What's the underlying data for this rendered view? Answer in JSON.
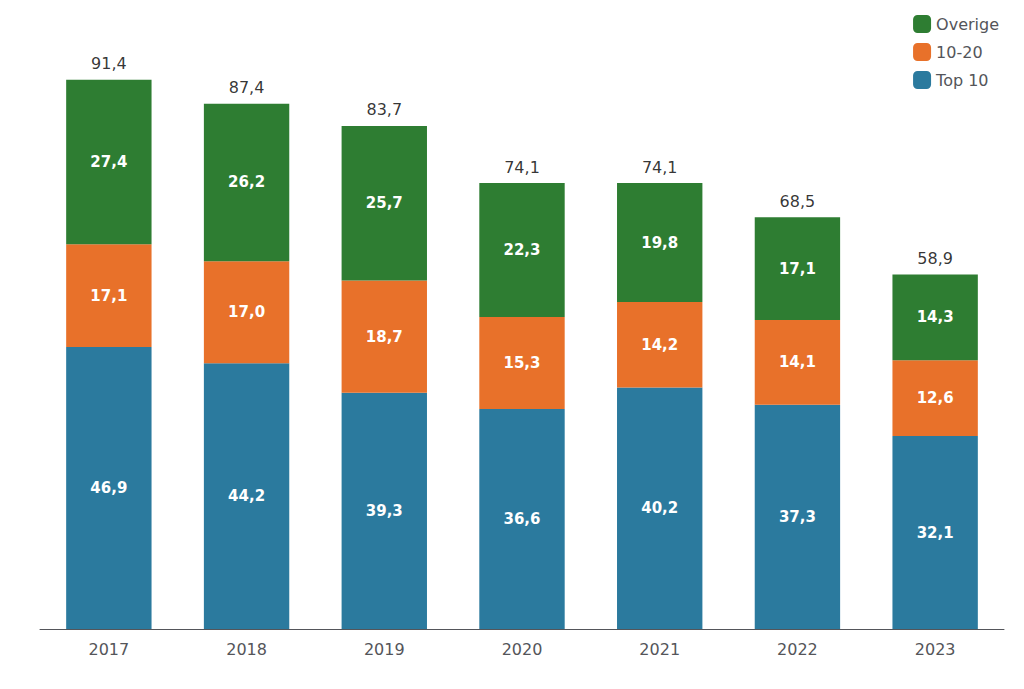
{
  "chart_data": {
    "type": "bar",
    "categories": [
      "2017",
      "2018",
      "2019",
      "2020",
      "2021",
      "2022",
      "2023"
    ],
    "series": [
      {
        "name": "Top 10",
        "color": "#2b7a9e",
        "values": [
          46.9,
          44.2,
          39.3,
          36.6,
          40.2,
          37.3,
          32.1
        ],
        "value_labels": [
          "46,9",
          "44,2",
          "39,3",
          "36,6",
          "40,2",
          "37,3",
          "32,1"
        ]
      },
      {
        "name": "10-20",
        "color": "#e8712a",
        "values": [
          17.1,
          17.0,
          18.7,
          15.3,
          14.2,
          14.1,
          12.6
        ],
        "value_labels": [
          "17,1",
          "17,0",
          "18,7",
          "15,3",
          "14,2",
          "14,1",
          "12,6"
        ]
      },
      {
        "name": "Overige",
        "color": "#2e7d32",
        "values": [
          27.4,
          26.2,
          25.7,
          22.3,
          19.8,
          17.1,
          14.3
        ],
        "value_labels": [
          "27,4",
          "26,2",
          "25,7",
          "22,3",
          "19,8",
          "17,1",
          "14,3"
        ]
      }
    ],
    "totals": [
      91.4,
      87.4,
      83.7,
      74.1,
      74.1,
      68.5,
      58.9
    ],
    "total_labels": [
      "91,4",
      "87,4",
      "83,7",
      "74,1",
      "74,1",
      "68,5",
      "58,9"
    ],
    "ylim": [
      0,
      98
    ],
    "stacked": true,
    "data_labels": true,
    "tick_labels": "x",
    "grid": false,
    "legend": "upper right"
  }
}
